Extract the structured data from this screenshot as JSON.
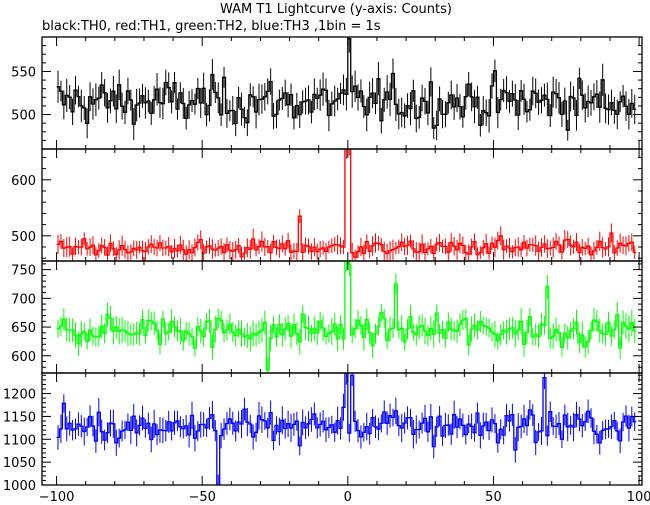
{
  "chart_data": {
    "type": "line",
    "title": "WAM T1 Lightcurve (y-axis: Counts)",
    "subtitle": "black:TH0, red:TH1, green:TH2, blue:TH3 ,1bin = 1s",
    "xlim": [
      -105,
      101
    ],
    "x_ticks": [
      -100,
      -50,
      0,
      50,
      100
    ],
    "x_tick_labels": [
      "−100",
      "−50",
      "0",
      "50",
      "100"
    ],
    "panels": [
      {
        "series": "TH0",
        "color": "#000000",
        "ylim": [
          460,
          590
        ],
        "y_ticks": [
          500,
          550
        ],
        "y_tick_labels": [
          "500",
          "550"
        ],
        "baseline": 515,
        "noise": 22,
        "errbar": 15,
        "features": [
          {
            "x": 0,
            "value": 588
          }
        ]
      },
      {
        "series": "TH1",
        "color": "#ff0000",
        "ylim": [
          455,
          655
        ],
        "y_ticks": [
          500,
          600
        ],
        "y_tick_labels": [
          "500",
          "600"
        ],
        "baseline": 478,
        "noise": 12,
        "errbar": 14,
        "features": [
          {
            "x": -17,
            "value": 535
          },
          {
            "x": -1,
            "value": 655
          },
          {
            "x": 0,
            "value": 655
          },
          {
            "x": 52,
            "value": 500
          },
          {
            "x": 90,
            "value": 505
          }
        ]
      },
      {
        "series": "TH2",
        "color": "#00ff00",
        "ylim": [
          570,
          765
        ],
        "y_ticks": [
          600,
          650,
          700,
          750
        ],
        "y_tick_labels": [
          "600",
          "650",
          "700",
          "750"
        ],
        "baseline": 645,
        "noise": 22,
        "errbar": 18,
        "features": [
          {
            "x": -28,
            "value": 575
          },
          {
            "x": -1,
            "value": 765
          },
          {
            "x": 0,
            "value": 760
          },
          {
            "x": 16,
            "value": 725
          },
          {
            "x": 68,
            "value": 720
          }
        ]
      },
      {
        "series": "TH3",
        "color": "#0000ff",
        "ylim": [
          1000,
          1245
        ],
        "y_ticks": [
          1000,
          1050,
          1100,
          1150,
          1200
        ],
        "y_tick_labels": [
          "1000",
          "1050",
          "1100",
          "1150",
          "1200"
        ],
        "baseline": 1130,
        "noise": 32,
        "errbar": 24,
        "features": [
          {
            "x": -45,
            "value": 1000
          },
          {
            "x": -1,
            "value": 1245
          },
          {
            "x": 1,
            "value": 1240
          },
          {
            "x": 67,
            "value": 1235
          }
        ]
      }
    ]
  }
}
